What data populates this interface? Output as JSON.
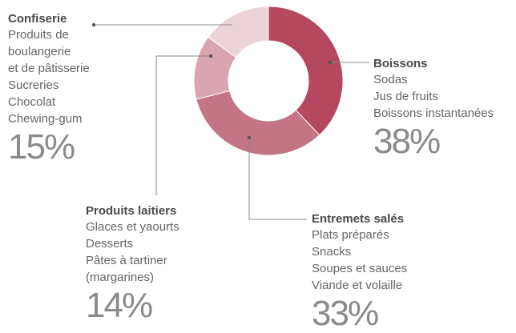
{
  "chart_data": {
    "type": "pie",
    "donut": true,
    "unit": "%",
    "categories": [
      "Boissons",
      "Entremets salés",
      "Produits laitiers",
      "Confiserie"
    ],
    "values": [
      38,
      33,
      14,
      15
    ],
    "colors": [
      "#b5485f",
      "#c47585",
      "#d9a5b0",
      "#edd2d8"
    ],
    "start_angle_deg": 0,
    "direction": "clockwise"
  },
  "segments": {
    "confiserie": {
      "title": "Confiserie",
      "items": [
        "Produits de",
        "boulangerie",
        "et de pâtisserie",
        "Sucreries",
        "Chocolat",
        "Chewing-gum"
      ],
      "pct": "15%"
    },
    "boissons": {
      "title": "Boissons",
      "items": [
        "Sodas",
        "Jus de fruits",
        "Boissons instantanées"
      ],
      "pct": "38%"
    },
    "laitiers": {
      "title": "Produits laitiers",
      "items": [
        "Glaces et yaourts",
        "Desserts",
        "Pâtes à tartiner",
        "(margarines)"
      ],
      "pct": "14%"
    },
    "entremets": {
      "title": "Entremets salés",
      "items": [
        "Plats préparés",
        "Snacks",
        "Soupes et sauces",
        "Viande et volaille"
      ],
      "pct": "33%"
    }
  },
  "colors": {
    "leader": "#888888",
    "dot": "#555555"
  }
}
